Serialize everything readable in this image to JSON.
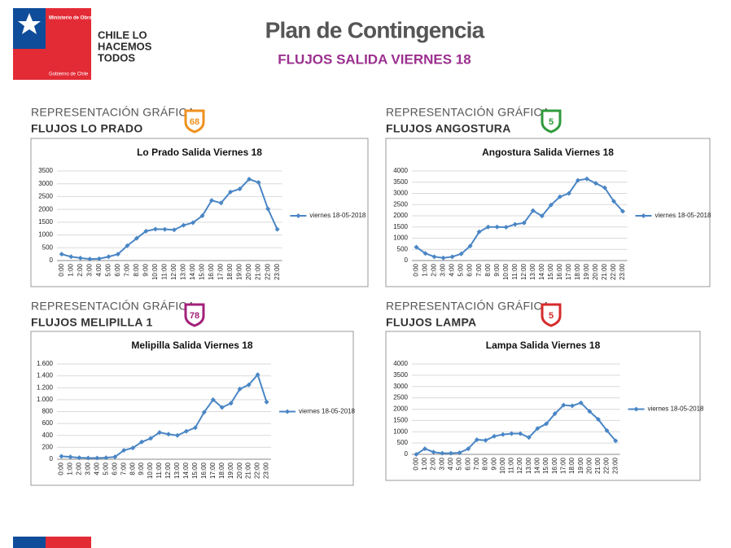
{
  "header": {
    "ministry": "Ministerio de Obras Públicas",
    "government": "Gobierno de Chile",
    "slogan": [
      "CHILE LO",
      "HACEMOS",
      "TODOS"
    ],
    "title": "Plan de Contingencia",
    "subtitle": "FLUJOS SALIDA VIERNES 18"
  },
  "panels": [
    {
      "heading": "REPRESENTACIÓN GRÁFICA",
      "subheading": "FLUJOS  LO PRADO",
      "badge": "68"
    },
    {
      "heading": "REPRESENTACIÓN GRÁFICA",
      "subheading": "FLUJOS  ANGOSTURA",
      "badge": "5"
    },
    {
      "heading": "REPRESENTACIÓN GRÁFICA",
      "subheading": "FLUJOS  MELIPILLA 1",
      "badge": "78"
    },
    {
      "heading": "REPRESENTACIÓN GRÁFICA",
      "subheading": "FLUJOS  LAMPA",
      "badge": "5"
    }
  ],
  "chart_data": [
    {
      "type": "line",
      "title": "Lo Prado Salida Viernes 18",
      "categories": [
        "0:00",
        "1:00",
        "2:00",
        "3:00",
        "4:00",
        "5:00",
        "6:00",
        "7:00",
        "8:00",
        "9:00",
        "10:00",
        "11:00",
        "12:00",
        "13:00",
        "14:00",
        "15:00",
        "16:00",
        "17:00",
        "18:00",
        "19:00",
        "20:00",
        "21:00",
        "22:00",
        "23:00"
      ],
      "series": [
        {
          "name": "viernes 18-05-2018",
          "color": "#4a86c5",
          "values": [
            250,
            150,
            100,
            60,
            70,
            150,
            250,
            580,
            870,
            1150,
            1230,
            1220,
            1200,
            1380,
            1480,
            1750,
            2350,
            2250,
            2680,
            2800,
            3180,
            3050,
            2020,
            1220
          ]
        }
      ],
      "ylim": [
        0,
        3500
      ],
      "yticks": [
        0,
        500,
        1000,
        1500,
        2000,
        2500,
        3000,
        3500
      ],
      "grid": true,
      "legend": "right"
    },
    {
      "type": "line",
      "title": "Angostura Salida Viernes 18",
      "categories": [
        "0:00",
        "1:00",
        "2:00",
        "3:00",
        "4:00",
        "5:00",
        "6:00",
        "7:00",
        "8:00",
        "9:00",
        "10:00",
        "11:00",
        "12:00",
        "13:00",
        "14:00",
        "15:00",
        "16:00",
        "17:00",
        "18:00",
        "19:00",
        "20:00",
        "21:00",
        "22:00",
        "23:00"
      ],
      "series": [
        {
          "name": "viernes 18-05-2018",
          "color": "#4a86c5",
          "values": [
            600,
            320,
            170,
            120,
            170,
            300,
            650,
            1280,
            1500,
            1500,
            1490,
            1620,
            1680,
            2230,
            1990,
            2480,
            2850,
            3000,
            3580,
            3650,
            3450,
            3250,
            2650,
            2200
          ]
        }
      ],
      "ylim": [
        0,
        4000
      ],
      "yticks": [
        0,
        500,
        1000,
        1500,
        2000,
        2500,
        3000,
        3500,
        4000
      ],
      "grid": true,
      "legend": "right"
    },
    {
      "type": "line",
      "title": "Melipilla Salida Viernes 18",
      "categories": [
        "0:00",
        "1:00",
        "2:00",
        "3:00",
        "4:00",
        "5:00",
        "6:00",
        "7:00",
        "8:00",
        "9:00",
        "10:00",
        "11:00",
        "12:00",
        "13:00",
        "14:00",
        "15:00",
        "16:00",
        "17:00",
        "18:00",
        "19:00",
        "20:00",
        "21:00",
        "22:00",
        "23:00"
      ],
      "series": [
        {
          "name": "viernes 18-05-2018",
          "color": "#4a86c5",
          "values": [
            50,
            40,
            25,
            20,
            20,
            25,
            40,
            150,
            190,
            290,
            350,
            450,
            420,
            400,
            470,
            530,
            790,
            1000,
            870,
            940,
            1180,
            1250,
            1420,
            960
          ]
        }
      ],
      "ylim": [
        0,
        1600
      ],
      "yticks": [
        0,
        200,
        400,
        600,
        800,
        {
          "value": 1000,
          "label": "1.000"
        },
        {
          "value": 1200,
          "label": "1.200"
        },
        {
          "value": 1400,
          "label": "1.400"
        },
        {
          "value": 1600,
          "label": "1.600"
        }
      ],
      "grid": true,
      "legend": "right"
    },
    {
      "type": "line",
      "title": "Lampa Salida Viernes 18",
      "categories": [
        "0:00",
        "1:00",
        "2:00",
        "3:00",
        "4:00",
        "5:00",
        "6:00",
        "7:00",
        "8:00",
        "9:00",
        "10:00",
        "11:00",
        "12:00",
        "13:00",
        "14:00",
        "15:00",
        "16:00",
        "17:00",
        "18:00",
        "19:00",
        "20:00",
        "21:00",
        "22:00",
        "23:00"
      ],
      "series": [
        {
          "name": "viernes 18-05-2018",
          "color": "#4a86c5",
          "values": [
            0,
            250,
            100,
            50,
            50,
            70,
            250,
            650,
            620,
            800,
            880,
            920,
            920,
            750,
            1150,
            1350,
            1800,
            2180,
            2150,
            2280,
            1900,
            1550,
            1050,
            600
          ]
        }
      ],
      "ylim": [
        0,
        4000
      ],
      "yticks": [
        0,
        500,
        1000,
        1500,
        2000,
        2500,
        3000,
        3500,
        4000
      ],
      "grid": true,
      "legend": "right"
    }
  ]
}
